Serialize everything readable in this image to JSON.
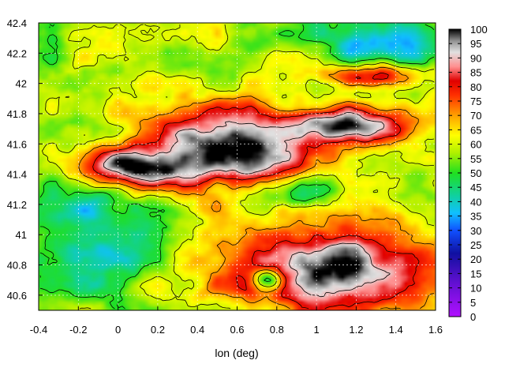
{
  "chart_data": {
    "type": "heatmap",
    "title": "",
    "xlabel": "lon (deg)",
    "ylabel": "",
    "xlim": [
      -0.4,
      1.6
    ],
    "ylim": [
      40.5,
      42.4
    ],
    "x_ticks": [
      "-0.4",
      "-0.2",
      "0",
      "0.2",
      "0.4",
      "0.6",
      "0.8",
      "1",
      "1.2",
      "1.4",
      "1.6"
    ],
    "y_ticks": [
      "40.6",
      "40.8",
      "41",
      "41.2",
      "41.4",
      "41.6",
      "41.8",
      "42",
      "42.2",
      "42.4"
    ],
    "colorbar": {
      "range": [
        0,
        100
      ],
      "ticks": [
        "0",
        "5",
        "10",
        "15",
        "20",
        "25",
        "30",
        "35",
        "40",
        "45",
        "50",
        "55",
        "60",
        "65",
        "70",
        "75",
        "80",
        "85",
        "90",
        "95",
        "100"
      ],
      "stops": [
        {
          "v": 0,
          "c": "#b010ff"
        },
        {
          "v": 12,
          "c": "#6010d0"
        },
        {
          "v": 22,
          "c": "#1010a0"
        },
        {
          "v": 30,
          "c": "#1050ff"
        },
        {
          "v": 36,
          "c": "#10c0ff"
        },
        {
          "v": 42,
          "c": "#10d0a0"
        },
        {
          "v": 50,
          "c": "#20e020"
        },
        {
          "v": 57,
          "c": "#b0f000"
        },
        {
          "v": 63,
          "c": "#ffff00"
        },
        {
          "v": 70,
          "c": "#ffa000"
        },
        {
          "v": 77,
          "c": "#ff3000"
        },
        {
          "v": 82,
          "c": "#e00000"
        },
        {
          "v": 87,
          "c": "#ff9090"
        },
        {
          "v": 92,
          "c": "#e0e0e0"
        },
        {
          "v": 96,
          "c": "#909090"
        },
        {
          "v": 100,
          "c": "#000000"
        }
      ]
    },
    "grid": true,
    "grid_style": "dotted-white",
    "contours": true
  }
}
